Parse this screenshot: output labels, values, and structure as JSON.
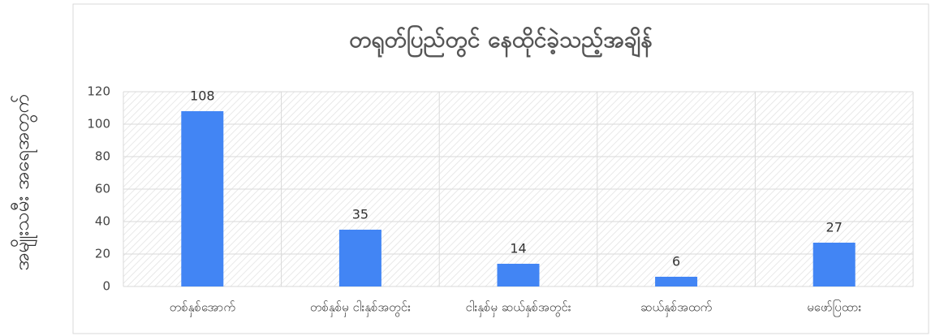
{
  "chart_data": {
    "type": "bar",
    "title": "တရုတ်ပြည်တွင် နေထိုင်ခဲ့သည့်အချိန်",
    "y_label": "အမျိုးသမီး အရေအတွက်",
    "categories": [
      "တစ်နှစ်အောက်",
      "တစ်နှစ်မှ ငါးနှစ်အတွင်း",
      "ငါးနှစ်မှ ဆယ်နှစ်အတွင်း",
      "ဆယ်နှစ်အထက်",
      "မဖော်ပြထား"
    ],
    "values": [
      108,
      35,
      14,
      6,
      27
    ],
    "color": "#4285f4",
    "ylim": [
      0,
      120
    ],
    "yticks": [
      0,
      20,
      40,
      60,
      80,
      100,
      120
    ],
    "grid": true
  }
}
